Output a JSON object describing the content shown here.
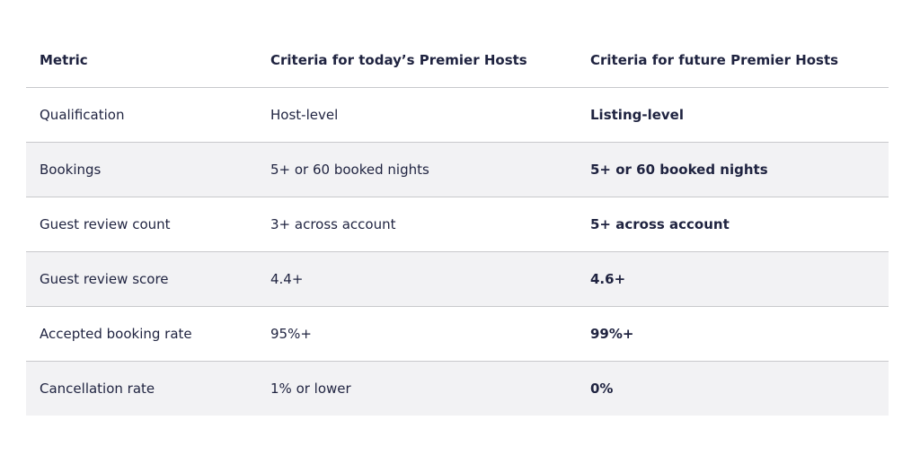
{
  "table": {
    "header": [
      "Metric",
      "Criteria for today’s Premier Hosts",
      "Criteria for future Premier Hosts"
    ],
    "rows": [
      [
        "Qualification",
        "Host-level",
        "Listing-level"
      ],
      [
        "Bookings",
        "5+ or 60 booked nights",
        "5+ or 60 booked nights"
      ],
      [
        "Guest review count",
        "3+ across account",
        "5+ across account"
      ],
      [
        "Guest review score",
        "4.4+",
        "4.6+"
      ],
      [
        "Accepted booking rate",
        "95%+",
        "99%+"
      ],
      [
        "Cancellation rate",
        "1% or lower",
        "0%"
      ]
    ]
  }
}
